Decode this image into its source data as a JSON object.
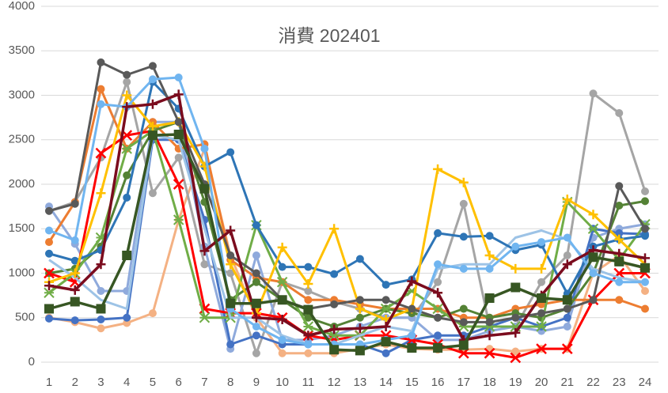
{
  "chart_data": {
    "type": "line",
    "title": "消費 202401",
    "categories": [
      "1",
      "2",
      "3",
      "4",
      "5",
      "6",
      "7",
      "8",
      "9",
      "10",
      "11",
      "12",
      "13",
      "14",
      "15",
      "16",
      "17",
      "18",
      "19",
      "20",
      "21",
      "22",
      "23",
      "24"
    ],
    "ylim": [
      0,
      4000
    ],
    "yticks": [
      0,
      500,
      1000,
      1500,
      2000,
      2500,
      3000,
      3500,
      4000
    ],
    "grid": true,
    "series": [
      {
        "color": "#f4b183",
        "marker": "circle",
        "values": [
          500,
          450,
          380,
          440,
          550,
          1600,
          2400,
          1200,
          500,
          100,
          100,
          100,
          150,
          200,
          150,
          140,
          140,
          150,
          120,
          150,
          150,
          1000,
          1200,
          800
        ]
      },
      {
        "color": "#a5a5a5",
        "marker": "circle",
        "values": [
          1700,
          1800,
          2300,
          3150,
          1900,
          2300,
          1100,
          1000,
          100,
          900,
          800,
          680,
          600,
          500,
          500,
          900,
          1780,
          400,
          400,
          900,
          1200,
          3020,
          2800,
          1920
        ]
      },
      {
        "color": "#8faadc",
        "marker": "circle",
        "values": [
          1750,
          1330,
          800,
          800,
          2700,
          2700,
          1300,
          150,
          1200,
          250,
          250,
          300,
          400,
          500,
          500,
          250,
          250,
          350,
          400,
          350,
          400,
          1400,
          1500,
          1550
        ]
      },
      {
        "color": "#4472c4",
        "marker": "circle",
        "values": [
          490,
          470,
          480,
          500,
          2500,
          2500,
          1600,
          200,
          300,
          200,
          200,
          200,
          200,
          100,
          250,
          300,
          300,
          400,
          500,
          400,
          500,
          1500,
          1450,
          1440
        ]
      },
      {
        "color": "#ed7d31",
        "marker": "circle",
        "values": [
          1350,
          1800,
          3070,
          2400,
          2700,
          2400,
          2450,
          1150,
          950,
          900,
          700,
          700,
          650,
          600,
          600,
          600,
          500,
          500,
          600,
          650,
          700,
          700,
          700,
          600
        ]
      },
      {
        "color": "#548235",
        "marker": "circle",
        "values": [
          1000,
          1050,
          1300,
          2100,
          2600,
          2700,
          1800,
          700,
          900,
          700,
          500,
          400,
          500,
          600,
          550,
          500,
          600,
          500,
          550,
          500,
          600,
          1000,
          1760,
          1810
        ]
      },
      {
        "color": "#ff0000",
        "marker": "x",
        "values": [
          1000,
          900,
          2350,
          2550,
          2600,
          2000,
          600,
          550,
          550,
          500,
          300,
          250,
          300,
          300,
          250,
          200,
          100,
          100,
          50,
          150,
          150,
          700,
          1000,
          1000
        ]
      },
      {
        "color": "#70ad47",
        "marker": "star",
        "values": [
          780,
          1000,
          1400,
          2400,
          2600,
          1600,
          500,
          500,
          1540,
          900,
          400,
          300,
          300,
          600,
          800,
          600,
          400,
          400,
          400,
          400,
          1800,
          1500,
          1150,
          1550
        ]
      },
      {
        "color": "#9dc3e6",
        "marker": "none",
        "values": [
          1150,
          950,
          700,
          600,
          2550,
          2500,
          1500,
          500,
          500,
          300,
          200,
          200,
          300,
          400,
          350,
          1050,
          1100,
          1100,
          1400,
          1480,
          1380,
          1050,
          950,
          900
        ]
      },
      {
        "color": "#2e75b6",
        "marker": "circle",
        "values": [
          1220,
          1140,
          1260,
          1850,
          3150,
          2850,
          2200,
          2360,
          1540,
          1070,
          1070,
          990,
          1160,
          870,
          930,
          1450,
          1410,
          1420,
          1260,
          1320,
          770,
          1300,
          1380,
          1420
        ]
      },
      {
        "color": "#ffc000",
        "marker": "plus",
        "values": [
          900,
          1000,
          1900,
          3000,
          2650,
          2700,
          2200,
          1100,
          550,
          1290,
          880,
          1500,
          600,
          480,
          600,
          2170,
          2020,
          1200,
          1050,
          1050,
          1830,
          1660,
          1380,
          1100
        ]
      },
      {
        "color": "#595959",
        "marker": "circle",
        "values": [
          1700,
          1780,
          3370,
          3230,
          3330,
          2700,
          2000,
          1200,
          1000,
          700,
          600,
          650,
          700,
          700,
          600,
          500,
          450,
          450,
          500,
          550,
          600,
          700,
          1980,
          1500
        ]
      },
      {
        "color": "#70b5f0",
        "marker": "circle",
        "values": [
          1480,
          1370,
          2900,
          2870,
          3180,
          3200,
          2400,
          600,
          400,
          250,
          200,
          200,
          200,
          250,
          300,
          1100,
          1050,
          1050,
          1300,
          1350,
          1400,
          1000,
          900,
          900
        ]
      },
      {
        "color": "#7b0c1e",
        "marker": "plus",
        "values": [
          860,
          810,
          1100,
          2870,
          2900,
          3010,
          1250,
          1480,
          500,
          480,
          300,
          370,
          380,
          400,
          910,
          780,
          250,
          300,
          330,
          750,
          1100,
          1260,
          1220,
          1170
        ]
      },
      {
        "color": "#375623",
        "marker": "square",
        "values": [
          600,
          680,
          600,
          1200,
          2550,
          2560,
          1950,
          660,
          660,
          700,
          590,
          140,
          130,
          230,
          160,
          160,
          190,
          720,
          840,
          720,
          700,
          1180,
          1130,
          1060
        ]
      }
    ]
  }
}
